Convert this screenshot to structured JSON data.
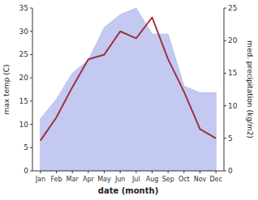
{
  "chart_data": {
    "type": "line",
    "xlabel": "date (month)",
    "ylabel": "max temp (C)",
    "y2label": "med. precipitation (kg/m2)",
    "categories": [
      "Jan",
      "Feb",
      "Mar",
      "Apr",
      "May",
      "Jun",
      "Jul",
      "Aug",
      "Sep",
      "Oct",
      "Nov",
      "Dec"
    ],
    "series": [
      {
        "type": "area",
        "axis": "y2",
        "color": "#b8bfee",
        "values": [
          8,
          11,
          15,
          17,
          22,
          24,
          25,
          21,
          21,
          13,
          12,
          12
        ]
      },
      {
        "type": "line",
        "color": "#a03040",
        "values": [
          6.5,
          11.5,
          18.0,
          24.0,
          25.0,
          30.0,
          28.5,
          33.0,
          24.0,
          17.0,
          9.0,
          7.0
        ]
      }
    ],
    "ylim": [
      0,
      35
    ],
    "yticks": [
      0,
      5,
      10,
      15,
      20,
      25,
      30,
      35
    ],
    "y2lim": [
      0,
      25
    ],
    "y2ticks": [
      0,
      5,
      10,
      15,
      20,
      25
    ],
    "grid": false
  }
}
